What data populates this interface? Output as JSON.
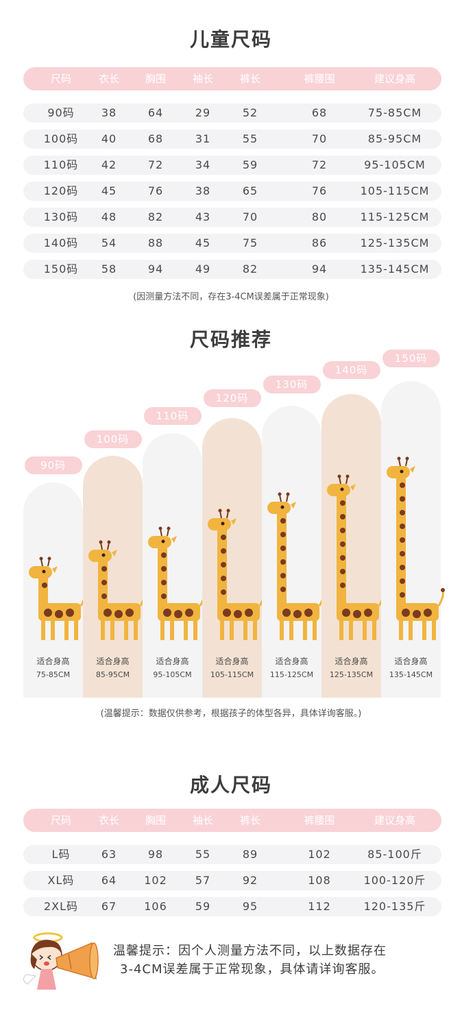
{
  "kids": {
    "title": "儿童尺码",
    "headers": [
      "尺码",
      "衣长",
      "胸围",
      "袖长",
      "裤长",
      "裤腰围",
      "建议身高"
    ],
    "rows": [
      [
        "90码",
        "38",
        "64",
        "29",
        "52",
        "68",
        "75-85CM"
      ],
      [
        "100码",
        "40",
        "68",
        "31",
        "55",
        "70",
        "85-95CM"
      ],
      [
        "110码",
        "42",
        "72",
        "34",
        "59",
        "72",
        "95-105CM"
      ],
      [
        "120码",
        "45",
        "76",
        "38",
        "65",
        "76",
        "105-115CM"
      ],
      [
        "130码",
        "48",
        "82",
        "43",
        "70",
        "80",
        "115-125CM"
      ],
      [
        "140码",
        "54",
        "88",
        "45",
        "75",
        "86",
        "125-135CM"
      ],
      [
        "150码",
        "58",
        "94",
        "49",
        "82",
        "94",
        "135-145CM"
      ]
    ],
    "note": "(因测量方法不同，存在3-4CM误差属于正常现象)"
  },
  "recommend": {
    "title": "尺码推荐",
    "fit_label": "适合身高",
    "items": [
      {
        "size": "90码",
        "range": "75-85CM"
      },
      {
        "size": "100码",
        "range": "85-95CM"
      },
      {
        "size": "110码",
        "range": "95-105CM"
      },
      {
        "size": "120码",
        "range": "105-115CM"
      },
      {
        "size": "130码",
        "range": "115-125CM"
      },
      {
        "size": "140码",
        "range": "125-135CM"
      },
      {
        "size": "150码",
        "range": "135-145CM"
      }
    ],
    "note": "(温馨提示：数据仅供参考，根据孩子的体型各异，具体详询客服。)"
  },
  "adult": {
    "title": "成人尺码",
    "headers": [
      "尺码",
      "衣长",
      "胸围",
      "袖长",
      "裤长",
      "裤腰围",
      "建议身高"
    ],
    "rows": [
      [
        "L码",
        "63",
        "98",
        "55",
        "89",
        "102",
        "85-100斤"
      ],
      [
        "XL码",
        "64",
        "102",
        "57",
        "92",
        "108",
        "100-120斤"
      ],
      [
        "2XL码",
        "67",
        "106",
        "59",
        "95",
        "112",
        "120-135斤"
      ]
    ]
  },
  "tip": {
    "line1": "温馨提示：因个人测量方法不同，以上数据存在",
    "line2": "3-4CM误差属于正常现象，具体请详询客服。"
  },
  "colors": {
    "header_pink": "#f9d2d6",
    "row_gray": "#f3f3f5",
    "arch_light": "#f4f4f5",
    "arch_tan": "#f3e2d3",
    "giraffe_yellow": "#f1b43f",
    "giraffe_spot": "#7a3b1f"
  }
}
